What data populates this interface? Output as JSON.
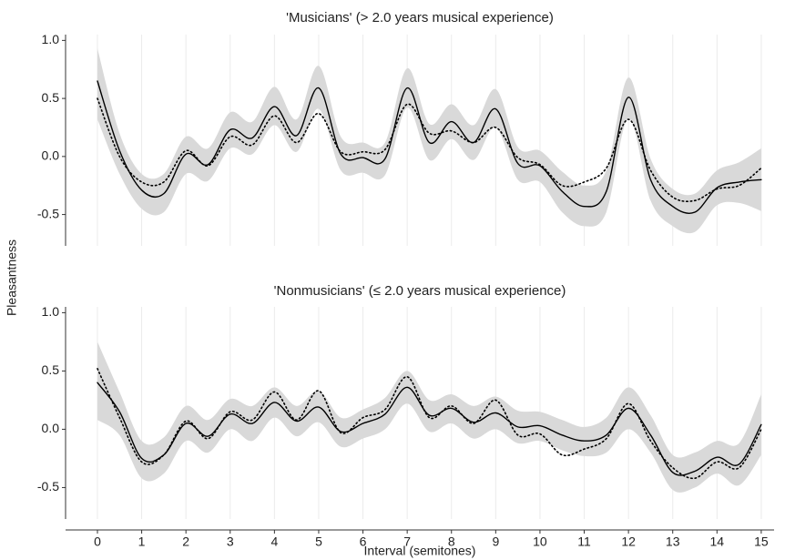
{
  "ylabel": "Pleasantness",
  "xlabel": "Interval (semitones)",
  "chart_data": [
    {
      "type": "line",
      "title": "'Musicians' (> 2.0 years musical experience)",
      "show_x_axis": false,
      "x": [
        0,
        0.5,
        1,
        1.5,
        2,
        2.5,
        3,
        3.5,
        4,
        4.5,
        5,
        5.5,
        6,
        6.5,
        7,
        7.5,
        8,
        8.5,
        9,
        9.5,
        10,
        10.5,
        11,
        11.5,
        12,
        12.5,
        13,
        13.5,
        14,
        14.5,
        15
      ],
      "series": [
        {
          "color": "#000000",
          "dash": "solid",
          "values": [
            0.65,
            0.05,
            -0.29,
            -0.32,
            0.02,
            -0.07,
            0.23,
            0.16,
            0.43,
            0.18,
            0.59,
            0.02,
            -0.01,
            -0.02,
            0.59,
            0.12,
            0.3,
            0.12,
            0.41,
            -0.06,
            -0.08,
            -0.3,
            -0.43,
            -0.3,
            0.51,
            -0.2,
            -0.43,
            -0.48,
            -0.27,
            -0.22,
            -0.2
          ]
        },
        {
          "color": "#000000",
          "dash": "dotted",
          "values": [
            0.5,
            0.0,
            -0.22,
            -0.22,
            0.05,
            -0.08,
            0.17,
            0.1,
            0.35,
            0.12,
            0.37,
            0.04,
            0.04,
            0.06,
            0.45,
            0.2,
            0.22,
            0.12,
            0.25,
            -0.01,
            -0.07,
            -0.25,
            -0.22,
            -0.1,
            0.32,
            -0.12,
            -0.35,
            -0.38,
            -0.28,
            -0.25,
            -0.1
          ]
        }
      ],
      "band": {
        "color": "#d9d9d9",
        "upper": [
          0.93,
          0.2,
          -0.15,
          -0.15,
          0.17,
          0.07,
          0.38,
          0.3,
          0.6,
          0.32,
          0.78,
          0.17,
          0.12,
          0.12,
          0.76,
          0.28,
          0.45,
          0.27,
          0.58,
          0.08,
          0.05,
          -0.13,
          -0.25,
          -0.12,
          0.68,
          -0.02,
          -0.28,
          -0.32,
          -0.12,
          -0.05,
          0.07
        ],
        "lower": [
          0.32,
          -0.15,
          -0.45,
          -0.48,
          -0.15,
          -0.21,
          0.07,
          0.02,
          0.27,
          0.04,
          0.41,
          -0.12,
          -0.14,
          -0.16,
          0.42,
          -0.03,
          0.15,
          -0.03,
          0.25,
          -0.2,
          -0.22,
          -0.48,
          -0.6,
          -0.48,
          0.33,
          -0.38,
          -0.6,
          -0.65,
          -0.42,
          -0.4,
          -0.47
        ]
      },
      "xlim": [
        -0.72,
        15.29
      ],
      "xticks": [
        0,
        1,
        2,
        3,
        4,
        5,
        6,
        7,
        8,
        9,
        10,
        11,
        12,
        13,
        14,
        15
      ],
      "ylim": [
        -0.77,
        1.05
      ],
      "yticks": [
        {
          "value": 1.0,
          "label": "1.0"
        },
        0.5,
        {
          "value": 0,
          "label": "0.0"
        },
        -0.5
      ],
      "grid": true
    },
    {
      "type": "line",
      "title": "'Nonmusicians' (≤ 2.0 years musical experience)",
      "show_x_axis": true,
      "x": [
        0,
        0.5,
        1,
        1.5,
        2,
        2.5,
        3,
        3.5,
        4,
        4.5,
        5,
        5.5,
        6,
        6.5,
        7,
        7.5,
        8,
        8.5,
        9,
        9.5,
        10,
        10.5,
        11,
        11.5,
        12,
        12.5,
        13,
        13.5,
        14,
        14.5,
        15
      ],
      "series": [
        {
          "color": "#000000",
          "dash": "solid",
          "values": [
            0.4,
            0.15,
            -0.25,
            -0.22,
            0.05,
            -0.06,
            0.13,
            0.05,
            0.23,
            0.07,
            0.19,
            -0.02,
            0.05,
            0.13,
            0.36,
            0.12,
            0.18,
            0.06,
            0.14,
            0.02,
            0.03,
            -0.05,
            -0.1,
            -0.05,
            0.18,
            -0.05,
            -0.37,
            -0.36,
            -0.24,
            -0.3,
            0.04
          ]
        },
        {
          "color": "#000000",
          "dash": "dotted",
          "values": [
            0.52,
            0.1,
            -0.28,
            -0.22,
            0.07,
            -0.08,
            0.15,
            0.08,
            0.32,
            0.08,
            0.33,
            -0.03,
            0.1,
            0.17,
            0.45,
            0.1,
            0.2,
            0.05,
            0.25,
            -0.05,
            -0.04,
            -0.22,
            -0.17,
            -0.08,
            0.22,
            -0.1,
            -0.33,
            -0.42,
            -0.28,
            -0.33,
            0.0
          ]
        }
      ],
      "band": {
        "color": "#d9d9d9",
        "upper": [
          0.75,
          0.32,
          -0.1,
          -0.07,
          0.2,
          0.08,
          0.26,
          0.2,
          0.36,
          0.2,
          0.33,
          0.1,
          0.17,
          0.27,
          0.5,
          0.25,
          0.3,
          0.2,
          0.28,
          0.16,
          0.15,
          0.08,
          0.02,
          0.1,
          0.36,
          0.12,
          -0.22,
          -0.2,
          -0.1,
          -0.12,
          0.3
        ],
        "lower": [
          0.08,
          -0.05,
          -0.42,
          -0.38,
          -0.1,
          -0.2,
          0.0,
          -0.1,
          0.1,
          -0.06,
          0.06,
          -0.15,
          -0.08,
          0.0,
          0.22,
          -0.02,
          0.05,
          -0.08,
          0.0,
          -0.12,
          -0.1,
          -0.18,
          -0.23,
          -0.2,
          0.0,
          -0.2,
          -0.52,
          -0.5,
          -0.38,
          -0.48,
          -0.22
        ]
      },
      "xlim": [
        -0.72,
        15.29
      ],
      "xticks": [
        0,
        1,
        2,
        3,
        4,
        5,
        6,
        7,
        8,
        9,
        10,
        11,
        12,
        13,
        14,
        15
      ],
      "ylim": [
        -0.77,
        1.05
      ],
      "yticks": [
        {
          "value": 1.0,
          "label": "1.0"
        },
        0.5,
        {
          "value": 0,
          "label": "0.0"
        },
        -0.5
      ],
      "grid": true
    }
  ]
}
